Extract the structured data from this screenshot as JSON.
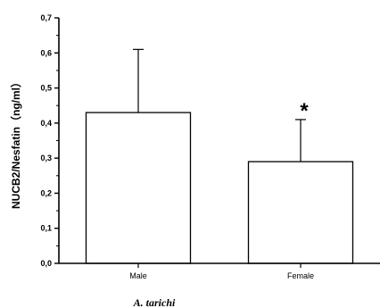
{
  "chart_data": {
    "type": "bar",
    "categories": [
      "Male",
      "Female"
    ],
    "values": [
      0.43,
      0.29
    ],
    "errors": [
      0.18,
      0.12
    ],
    "annotations": [
      "",
      "*"
    ],
    "ylabel": "NUCB2/Nesfatin（ng/ml）",
    "xlabel": "A. tarichi",
    "ylim": [
      0,
      0.7
    ],
    "yticks": [
      "0,0",
      "0,1",
      "0,2",
      "0,3",
      "0,4",
      "0,5",
      "0,6",
      "0,7"
    ],
    "grid": false,
    "bar_fill": "#ffffff",
    "bar_stroke": "#000000"
  }
}
